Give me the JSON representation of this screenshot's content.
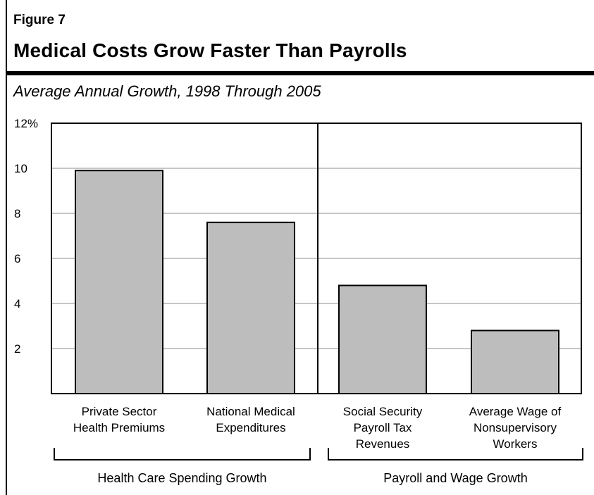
{
  "figure_label": "Figure 7",
  "title": "Medical Costs Grow Faster Than Payrolls",
  "subtitle": "Average Annual Growth, 1998 Through 2005",
  "chart_data": {
    "type": "bar",
    "title": "Medical Costs Grow Faster Than Payrolls",
    "subtitle": "Average Annual Growth, 1998 Through 2005",
    "categories": [
      [
        "Private Sector",
        "Health Premiums"
      ],
      [
        "National Medical",
        "Expenditures"
      ],
      [
        "Social Security",
        "Payroll Tax",
        "Revenues"
      ],
      [
        "Average Wage of",
        "Nonsupervisory",
        "Workers"
      ]
    ],
    "values": [
      9.9,
      7.6,
      4.8,
      2.8
    ],
    "ylim": [
      0,
      12
    ],
    "yticks": [
      2,
      4,
      6,
      8,
      10,
      12
    ],
    "ytick_labels": [
      "2",
      "4",
      "6",
      "8",
      "10",
      "12%"
    ],
    "grid": true,
    "bar_color": "#bdbdbd",
    "groups": [
      {
        "label": "Health Care Spending Growth",
        "categories": [
          0,
          1
        ]
      },
      {
        "label": "Payroll and Wage Growth",
        "categories": [
          2,
          3
        ]
      }
    ]
  }
}
